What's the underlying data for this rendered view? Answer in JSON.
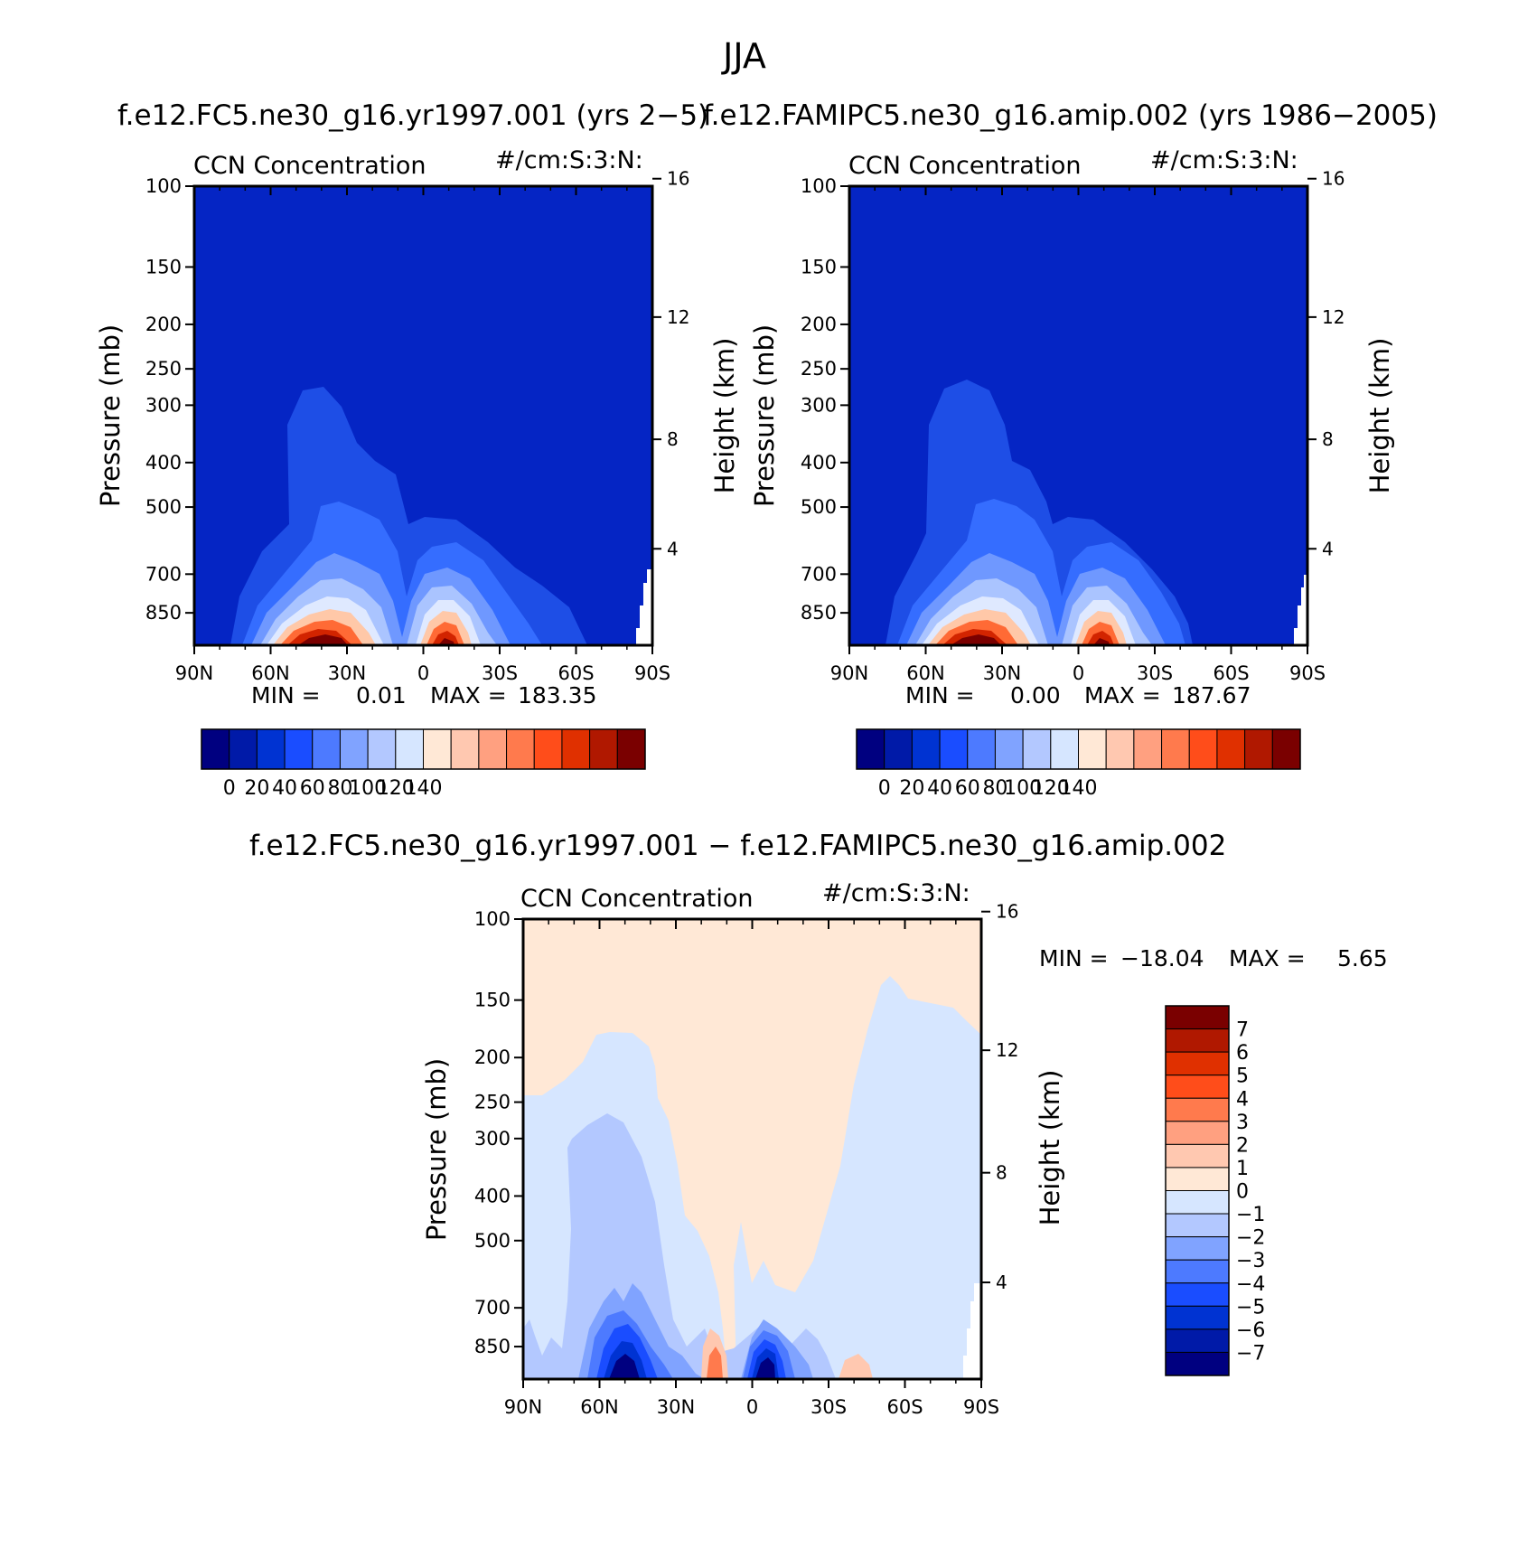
{
  "figure": {
    "title": "JJA"
  },
  "colors": {
    "cmap": [
      "#000080",
      "#001aa8",
      "#0033d2",
      "#1a4dff",
      "#4d7aff",
      "#80a3ff",
      "#b3c8ff",
      "#d6e6ff",
      "#ffe8d6",
      "#ffc8b0",
      "#ffa080",
      "#ff7a4d",
      "#ff4d1a",
      "#e03000",
      "#b01800",
      "#7a0000"
    ],
    "field_fill": "#0525c4"
  },
  "chart_data": [
    {
      "type": "contour",
      "case_title": "f.e12.FC5.ne30_g16.yr1997.001 (yrs 2−5)",
      "variable": "CCN Concentration",
      "units": "#/cm:S:3:N:",
      "xlabel": "",
      "ylabel": "Pressure (mb)",
      "ylabel_right": "Height (km)",
      "x_ticks": [
        "90N",
        "60N",
        "30N",
        "0",
        "30S",
        "60S",
        "90S"
      ],
      "y_ticks": [
        "100",
        "150",
        "200",
        "250",
        "300",
        "400",
        "500",
        "700",
        "850"
      ],
      "y_right_ticks": [
        "16",
        "12",
        "8",
        "4"
      ],
      "stats": {
        "min_label": "MIN =",
        "min": "0.01",
        "max_label": "MAX =",
        "max": "183.35"
      },
      "colorbar_labels": [
        "0",
        "20",
        "40",
        "60",
        "80",
        "100",
        "120",
        "140"
      ],
      "xlim": [
        -90,
        90
      ],
      "ylim_mb": [
        100,
        1000
      ]
    },
    {
      "type": "contour",
      "case_title": "f.e12.FAMIPC5.ne30_g16.amip.002 (yrs 1986−2005)",
      "variable": "CCN Concentration",
      "units": "#/cm:S:3:N:",
      "xlabel": "",
      "ylabel": "Pressure (mb)",
      "ylabel_right": "Height (km)",
      "x_ticks": [
        "90N",
        "60N",
        "30N",
        "0",
        "30S",
        "60S",
        "90S"
      ],
      "y_ticks": [
        "100",
        "150",
        "200",
        "250",
        "300",
        "400",
        "500",
        "700",
        "850"
      ],
      "y_right_ticks": [
        "16",
        "12",
        "8",
        "4"
      ],
      "stats": {
        "min_label": "MIN =",
        "min": "0.00",
        "max_label": "MAX =",
        "max": "187.67"
      },
      "colorbar_labels": [
        "0",
        "20",
        "40",
        "60",
        "80",
        "100",
        "120",
        "140"
      ],
      "xlim": [
        -90,
        90
      ],
      "ylim_mb": [
        100,
        1000
      ]
    },
    {
      "type": "contour",
      "case_title": "f.e12.FC5.ne30_g16.yr1997.001 − f.e12.FAMIPC5.ne30_g16.amip.002",
      "variable": "CCN Concentration",
      "units": "#/cm:S:3:N:",
      "xlabel": "",
      "ylabel": "Pressure (mb)",
      "ylabel_right": "Height (km)",
      "x_ticks": [
        "90N",
        "60N",
        "30N",
        "0",
        "30S",
        "60S",
        "90S"
      ],
      "y_ticks": [
        "100",
        "150",
        "200",
        "250",
        "300",
        "400",
        "500",
        "700",
        "850"
      ],
      "y_right_ticks": [
        "16",
        "12",
        "8",
        "4"
      ],
      "stats": {
        "min_label": "MIN =",
        "min": "−18.04",
        "max_label": "MAX =",
        "max": "5.65"
      },
      "colorbar_labels": [
        "7",
        "6",
        "5",
        "4",
        "3",
        "2",
        "1",
        "0",
        "−1",
        "−2",
        "−3",
        "−4",
        "−5",
        "−6",
        "−7"
      ],
      "xlim": [
        -90,
        90
      ],
      "ylim_mb": [
        100,
        1000
      ]
    }
  ]
}
